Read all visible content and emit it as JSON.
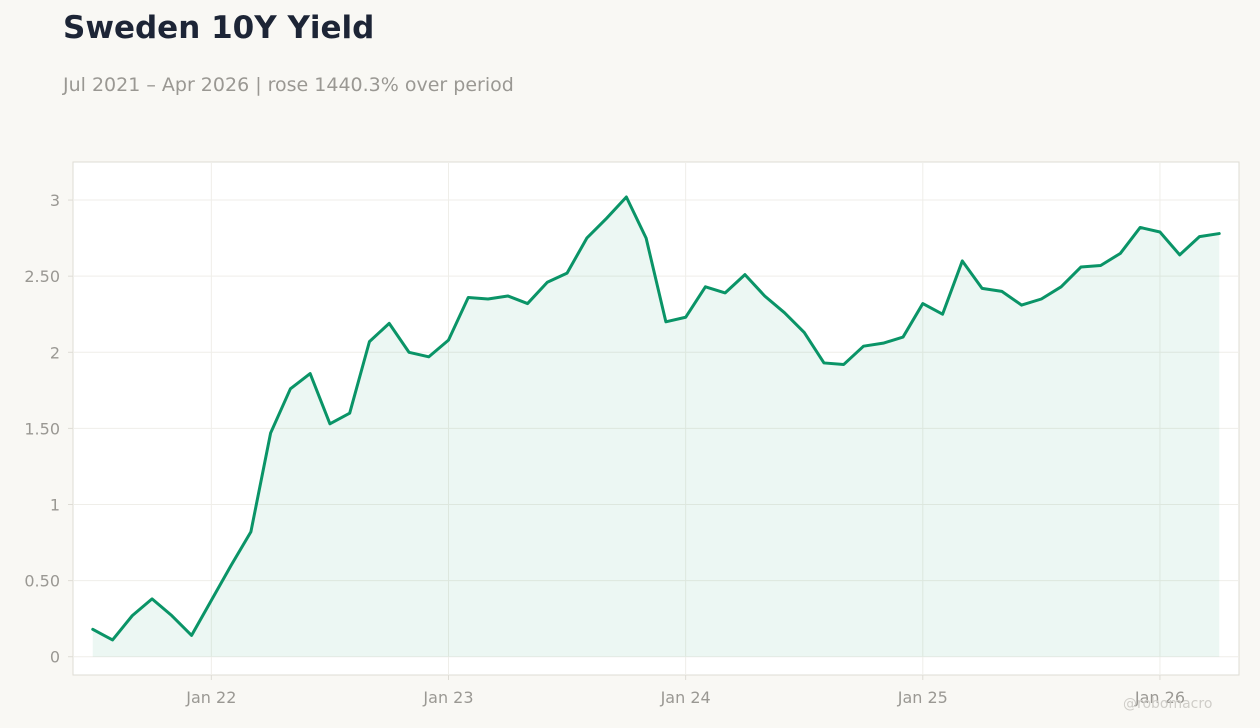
{
  "header": {
    "title": "Sweden 10Y Yield",
    "subtitle": "Jul 2021 – Apr 2026 | rose 1440.3% over period"
  },
  "watermark": "@robomacro",
  "colors": {
    "line": "#0a9467",
    "fill": "#0a9467",
    "background": "#f9f8f4",
    "plot_background": "#ffffff"
  },
  "chart_data": {
    "type": "area",
    "title": "Sweden 10Y Yield",
    "xlabel": "",
    "ylabel": "",
    "x_unit": "month",
    "x_start": "2021-07",
    "x_end": "2026-04",
    "xlim": [
      "2021-06",
      "2026-05"
    ],
    "ylim": [
      -0.12,
      3.25
    ],
    "grid": true,
    "legend": "none",
    "x_ticks": [
      {
        "label": "Jan 22",
        "date": "2022-01"
      },
      {
        "label": "Jan 23",
        "date": "2023-01"
      },
      {
        "label": "Jan 24",
        "date": "2024-01"
      },
      {
        "label": "Jan 25",
        "date": "2025-01"
      },
      {
        "label": "Jan 26",
        "date": "2026-01"
      }
    ],
    "y_ticks": [
      {
        "value": 0,
        "label": "0"
      },
      {
        "value": 0.5,
        "label": "0.50"
      },
      {
        "value": 1,
        "label": "1"
      },
      {
        "value": 1.5,
        "label": "1.50"
      },
      {
        "value": 2,
        "label": "2"
      },
      {
        "value": 2.5,
        "label": "2.50"
      },
      {
        "value": 3,
        "label": "3"
      }
    ],
    "series": [
      {
        "values": [
          0.18,
          0.11,
          0.27,
          0.38,
          0.27,
          0.14,
          0.37,
          0.6,
          0.82,
          1.47,
          1.76,
          1.86,
          1.53,
          1.6,
          2.07,
          2.19,
          2.0,
          1.97,
          2.08,
          2.36,
          2.35,
          2.37,
          2.32,
          2.46,
          2.52,
          2.75,
          2.88,
          3.02,
          2.75,
          2.2,
          2.23,
          2.43,
          2.39,
          2.51,
          2.37,
          2.26,
          2.13,
          1.93,
          1.92,
          2.04,
          2.06,
          2.1,
          2.32,
          2.25,
          2.6,
          2.42,
          2.4,
          2.31,
          2.35,
          2.43,
          2.56,
          2.57,
          2.65,
          2.82,
          2.79,
          2.64,
          2.76,
          2.78
        ]
      }
    ]
  }
}
